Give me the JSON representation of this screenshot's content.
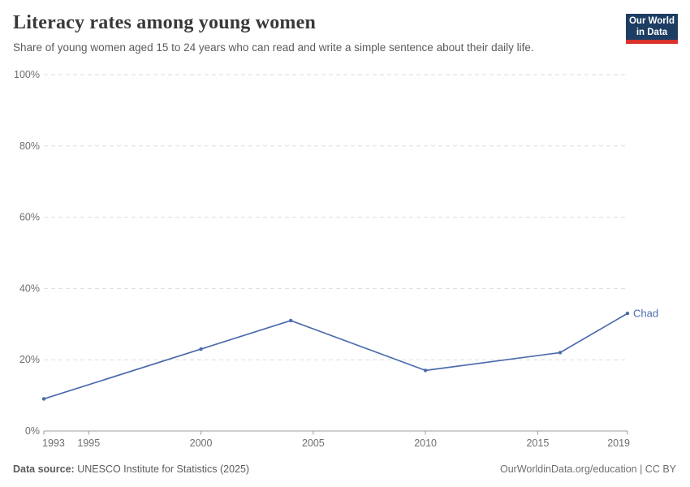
{
  "header": {
    "title": "Literacy rates among young women",
    "subtitle": "Share of young women aged 15 to 24 years who can read and write a simple sentence about their daily life."
  },
  "logo": {
    "line1": "Our World",
    "line2": "in Data",
    "bg_color": "#1d3d63",
    "stripe_color": "#d8322b",
    "text_color": "#ffffff"
  },
  "chart_data": {
    "type": "line",
    "title": "Literacy rates among young women",
    "x": [
      1993,
      2000,
      2004,
      2010,
      2016,
      2019
    ],
    "series": [
      {
        "name": "Chad",
        "color": "#4b6bad",
        "values": [
          9,
          23,
          31,
          17,
          22,
          33
        ]
      }
    ],
    "end_label": "Chad",
    "xlabel": "",
    "ylabel": "",
    "xlim": [
      1993,
      2019
    ],
    "ylim": [
      0,
      100
    ],
    "x_ticks": [
      1993,
      1995,
      2000,
      2005,
      2010,
      2015,
      2019
    ],
    "y_ticks": [
      0,
      20,
      40,
      60,
      80,
      100
    ],
    "y_tick_suffix": "%",
    "grid": "horizontal-dashed",
    "legend_position": "end-of-line"
  },
  "footer": {
    "datasource_label": "Data source:",
    "datasource_value": "UNESCO Institute for Statistics (2025)",
    "credit": "OurWorldinData.org/education | CC BY"
  },
  "colors": {
    "title": "#383838",
    "subtitle": "#5b5b5b",
    "axis": "#9c9c9c",
    "tick_label": "#6e6e6e",
    "gridline": "#dedede",
    "line": "#4b6bad"
  }
}
